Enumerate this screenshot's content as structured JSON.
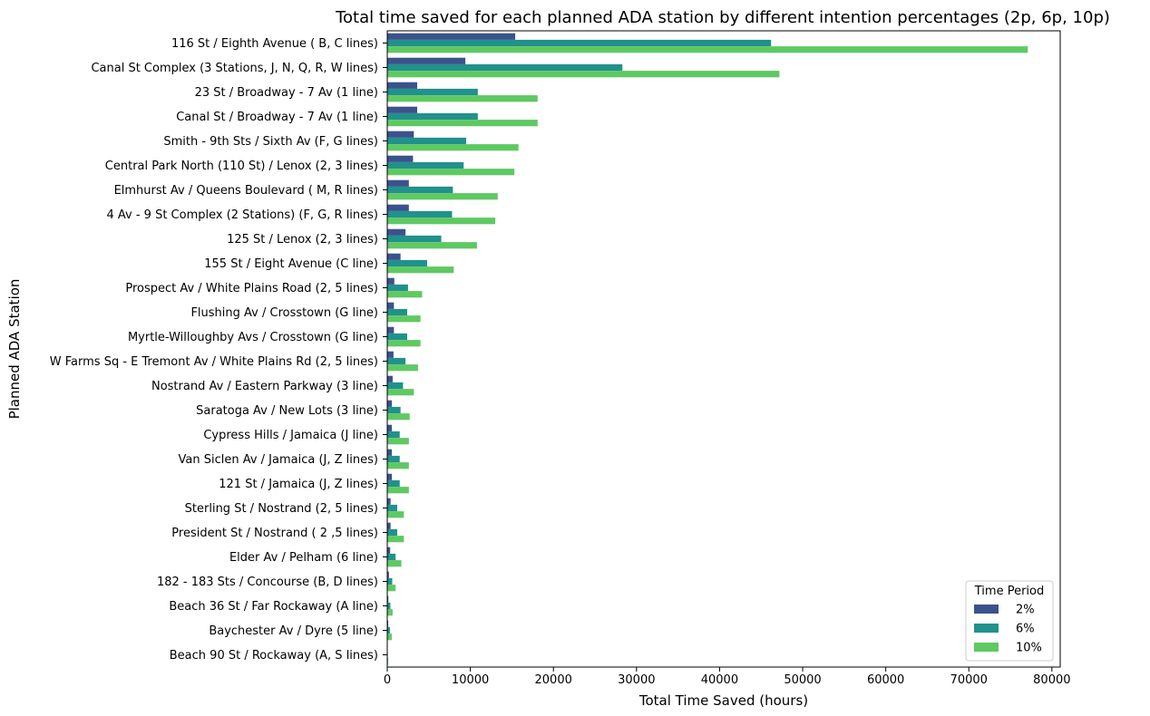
{
  "chart_data": {
    "type": "bar",
    "orientation": "horizontal",
    "title": "Total time saved for each planned ADA station by different intention percentages (2p, 6p, 10p)",
    "xlabel": "Total Time Saved (hours)",
    "ylabel": "Planned ADA Station",
    "xlim": [
      0,
      81000
    ],
    "xticks": [
      0,
      10000,
      20000,
      30000,
      40000,
      50000,
      60000,
      70000,
      80000
    ],
    "grid": false,
    "legend": {
      "title": "Time Period",
      "placement": "lower-right"
    },
    "categories": [
      "116 St / Eighth Avenue ( B, C lines)",
      "Canal St Complex (3 Stations, J, N, Q, R, W lines)",
      "23 St / Broadway - 7 Av (1 line)",
      "Canal St / Broadway - 7 Av (1 line)",
      "Smith - 9th Sts / Sixth Av (F, G lines)",
      "Central Park North (110 St) / Lenox (2, 3 lines)",
      "Elmhurst Av / Queens Boulevard ( M, R lines)",
      "4 Av - 9 St Complex (2 Stations) (F, G, R lines)",
      "125 St / Lenox (2, 3 lines)",
      "155 St / Eight Avenue (C line)",
      "Prospect Av / White Plains Road (2, 5 lines)",
      "Flushing Av / Crosstown (G line)",
      "Myrtle-Willoughby Avs / Crosstown (G line)",
      "W Farms Sq - E Tremont Av / White Plains Rd (2, 5 lines)",
      "Nostrand Av / Eastern Parkway (3 line)",
      "Saratoga Av / New Lots (3 line)",
      "Cypress Hills / Jamaica (J line)",
      "Van Siclen Av / Jamaica (J, Z lines)",
      "121 St / Jamaica (J, Z lines)",
      "Sterling St / Nostrand (2, 5 lines)",
      "President St / Nostrand ( 2 ,5 lines)",
      "Elder Av / Pelham (6 line)",
      "182 - 183 Sts / Concourse (B, D lines)",
      "Beach 36 St / Far Rockaway (A line)",
      "Baychester Av / Dyre (5 line)",
      "Beach 90 St / Rockaway (A, S lines)"
    ],
    "series": [
      {
        "name": "2%",
        "color": "#3b528b",
        "values": [
          15400,
          9400,
          3600,
          3600,
          3200,
          3100,
          2600,
          2600,
          2200,
          1600,
          850,
          800,
          800,
          750,
          650,
          550,
          550,
          550,
          550,
          400,
          400,
          350,
          200,
          130,
          110,
          20
        ]
      },
      {
        "name": "6%",
        "color": "#21918c",
        "values": [
          46200,
          28300,
          10900,
          10900,
          9500,
          9200,
          7900,
          7800,
          6500,
          4800,
          2500,
          2400,
          2400,
          2200,
          1900,
          1600,
          1500,
          1500,
          1500,
          1200,
          1200,
          1000,
          600,
          380,
          320,
          60
        ]
      },
      {
        "name": "10%",
        "color": "#5ec962",
        "values": [
          77100,
          47200,
          18100,
          18100,
          15800,
          15300,
          13300,
          13000,
          10800,
          8000,
          4200,
          4000,
          4000,
          3700,
          3200,
          2700,
          2600,
          2600,
          2600,
          2000,
          2000,
          1700,
          1000,
          640,
          540,
          100
        ]
      }
    ]
  }
}
